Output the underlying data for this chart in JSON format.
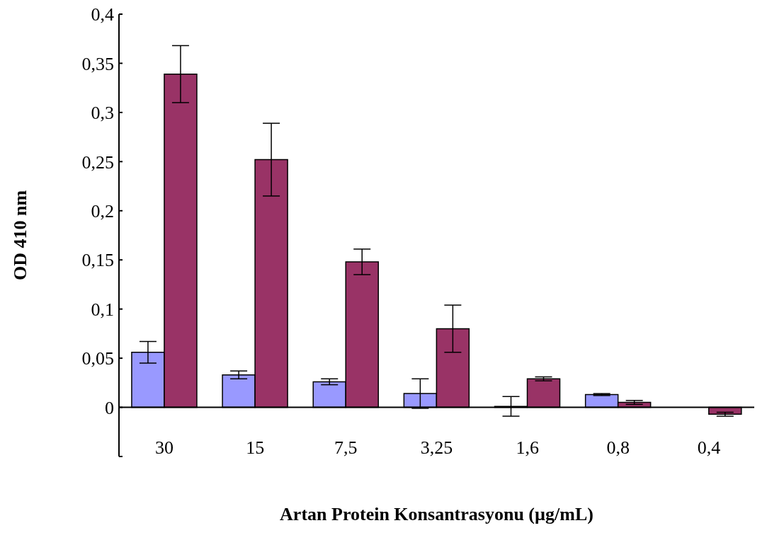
{
  "chart_data": {
    "type": "bar",
    "xlabel": "Artan Protein Konsantrasyonu (µg/mL)",
    "ylabel": "OD 410 nm",
    "categories": [
      "30",
      "15",
      "7,5",
      "3,25",
      "1,6",
      "0,8",
      "0,4"
    ],
    "series": [
      {
        "color": "#9999ff",
        "values": [
          0.056,
          0.033,
          0.026,
          0.014,
          0.001,
          0.013,
          0
        ],
        "errors": [
          0.011,
          0.004,
          0.003,
          0.015,
          0.01,
          0.001,
          null
        ]
      },
      {
        "color": "#993366",
        "values": [
          0.339,
          0.252,
          0.148,
          0.08,
          0.029,
          0.005,
          -0.007
        ],
        "errors": [
          0.029,
          0.037,
          0.013,
          0.024,
          0.002,
          0.002,
          0.002
        ]
      }
    ],
    "ylim": [
      -0.05,
      0.4
    ],
    "yticks": [
      {
        "value": -0.05,
        "label": null
      },
      0,
      {
        "value": 0.05,
        "label": "0,05"
      },
      {
        "value": 0.1,
        "label": "0,1"
      },
      {
        "value": 0.15,
        "label": "0,15"
      },
      {
        "value": 0.2,
        "label": "0,2"
      },
      {
        "value": 0.25,
        "label": "0,25"
      },
      {
        "value": 0.3,
        "label": "0,3"
      },
      {
        "value": 0.35,
        "label": "0,35"
      },
      {
        "value": 0.4,
        "label": "0,4"
      }
    ],
    "grid": false,
    "legend": false
  }
}
